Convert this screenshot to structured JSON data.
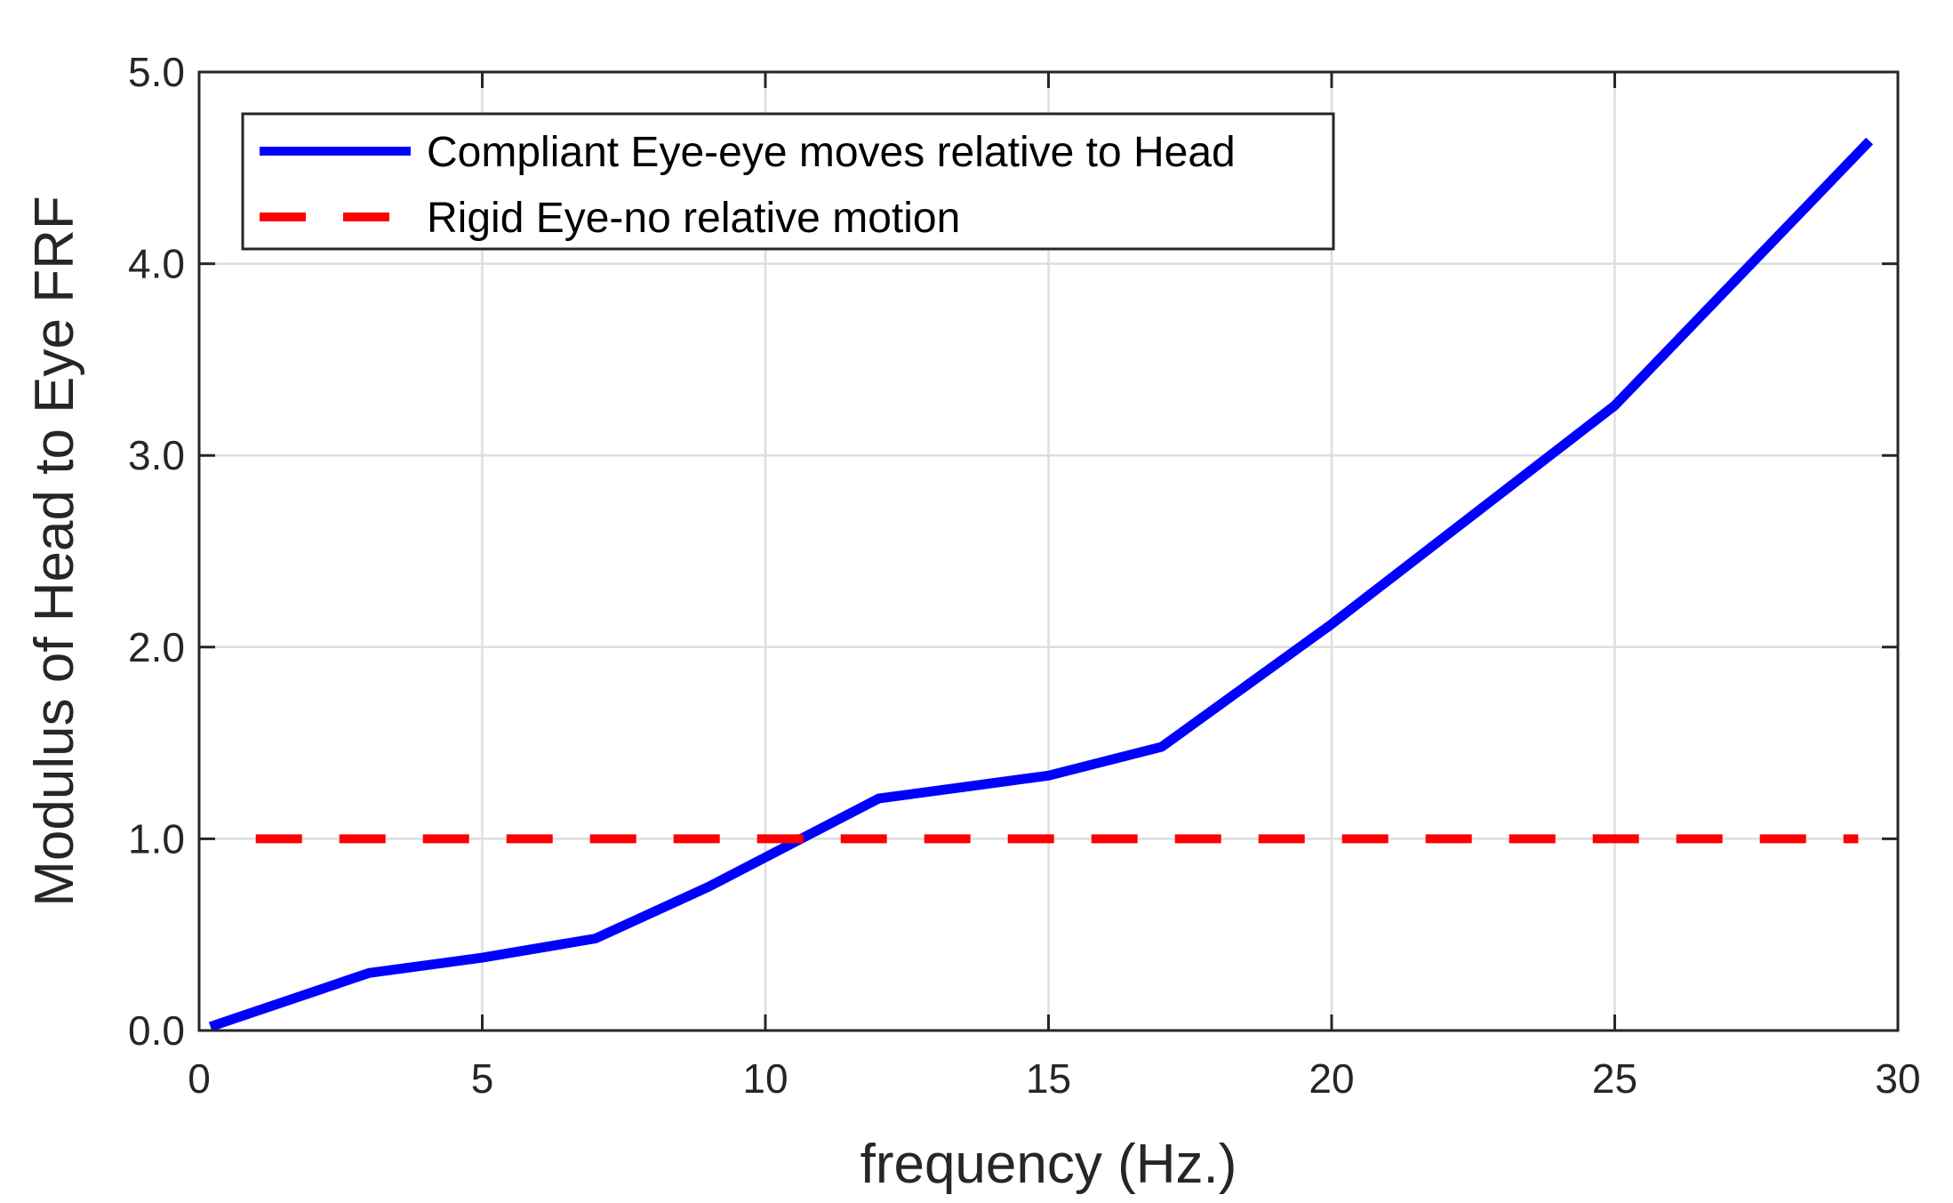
{
  "chart_data": {
    "type": "line",
    "xlabel": "frequency (Hz.)",
    "ylabel": "Modulus of Head to Eye FRF",
    "xlim": [
      0,
      30
    ],
    "ylim": [
      0,
      5
    ],
    "x_ticks": [
      "0",
      "5",
      "10",
      "15",
      "20",
      "25",
      "30"
    ],
    "y_ticks": [
      "0.0",
      "1.0",
      "2.0",
      "3.0",
      "4.0",
      "5.0"
    ],
    "x_tick_values": [
      0,
      5,
      10,
      15,
      20,
      25,
      30
    ],
    "y_tick_values": [
      0,
      1,
      2,
      3,
      4,
      5
    ],
    "grid": true,
    "legend_position": "top-left",
    "series": [
      {
        "name": "Compliant Eye-eye moves relative to Head",
        "color": "#0000ff",
        "style": "solid",
        "x": [
          0.2,
          3,
          5,
          7,
          9,
          12,
          15,
          17,
          20,
          25,
          29.5
        ],
        "y": [
          0.02,
          0.3,
          0.38,
          0.48,
          0.75,
          1.21,
          1.33,
          1.48,
          2.12,
          3.26,
          4.64
        ]
      },
      {
        "name": "Rigid Eye-no relative motion",
        "color": "#ff0000",
        "style": "dashed",
        "x": [
          1,
          29.3
        ],
        "y": [
          1.0,
          1.0
        ]
      }
    ]
  }
}
